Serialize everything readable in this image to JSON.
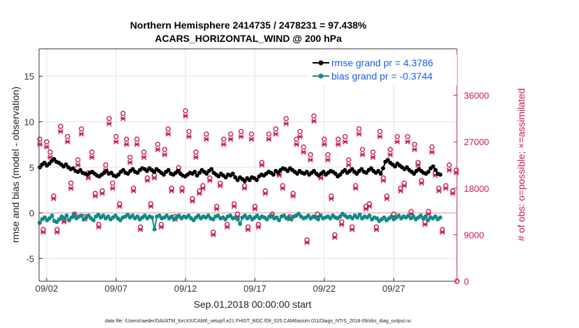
{
  "chart_data": {
    "type": "line",
    "title_line1": "Northern Hemisphere 2414735 / 2478231 = 97.438%",
    "title_line2": "ACARS_HORIZONTAL_WIND @ 200 hPa",
    "xlabel": "Sep.01,2018 00:00:00 start",
    "ylabel_left": "rmse and bias (model - observation)",
    "ylabel_right": "# of obs: o=possible; ×=assimilated",
    "footnote": "data file: /Users/raeder/DAI/ATM_forcXX/CAM6_setup/f.e21.FHIST_BGC.f09_025.CAM6assim.011/Diags_NTrS_2018-09/obs_diag_output.nc",
    "x_range_days": [
      0.7,
      30.8
    ],
    "ylim_left": [
      -7.5,
      18
    ],
    "ylim_right": [
      0,
      45000
    ],
    "x_ticks": [
      {
        "day": 1.25,
        "label": "09/02"
      },
      {
        "day": 6.25,
        "label": "09/07"
      },
      {
        "day": 11.25,
        "label": "09/12"
      },
      {
        "day": 16.25,
        "label": "09/17"
      },
      {
        "day": 21.25,
        "label": "09/22"
      },
      {
        "day": 26.25,
        "label": "09/27"
      }
    ],
    "y_ticks_left": [
      {
        "value": -5,
        "label": "-5"
      },
      {
        "value": 0,
        "label": "0"
      },
      {
        "value": 5,
        "label": "5"
      },
      {
        "value": 10,
        "label": "10"
      },
      {
        "value": 15,
        "label": "15"
      }
    ],
    "y_ticks_right": [
      {
        "value": 0,
        "label": "0"
      },
      {
        "value": 9000,
        "label": "9000"
      },
      {
        "value": 18000,
        "label": "18000"
      },
      {
        "value": 27000,
        "label": "27000"
      },
      {
        "value": 36000,
        "label": "36000"
      }
    ],
    "colors": {
      "rmse": "#000000",
      "bias": "#0f8a87",
      "obs": "#c8195a",
      "zero_line": "#d79aa8",
      "grid": "#e4e4e4",
      "legend_text": "#1a5fe0"
    },
    "series": [
      {
        "name": "rmse grand pr = 4.3786",
        "axis": "left",
        "values": [
          5.0,
          5.3,
          5.5,
          5.2,
          5.4,
          5.7,
          5.9,
          5.6,
          5.5,
          5.3,
          5.1,
          5.3,
          5.0,
          4.8,
          4.9,
          4.6,
          4.5,
          4.7,
          4.4,
          4.3,
          4.2,
          4.4,
          4.5,
          4.3,
          4.1,
          4.0,
          4.2,
          4.4,
          4.6,
          4.3,
          4.4,
          4.1,
          4.0,
          4.2,
          4.5,
          4.7,
          4.4,
          4.3,
          4.6,
          4.8,
          4.5,
          4.4,
          4.7,
          4.9,
          4.8,
          4.6,
          4.9,
          4.7,
          4.5,
          4.8,
          4.6,
          4.4,
          4.2,
          4.5,
          4.7,
          4.3,
          4.2,
          4.4,
          4.6,
          4.3,
          4.1,
          4.0,
          4.2,
          4.4,
          4.3,
          4.5,
          4.1,
          4.4,
          4.7,
          4.5,
          4.3,
          4.6,
          4.8,
          4.4,
          4.2,
          4.0,
          4.3,
          4.1,
          3.9,
          4.2,
          4.1,
          4.3,
          3.9,
          3.6,
          3.9,
          3.7,
          3.5,
          3.8,
          3.6,
          3.9,
          3.8,
          3.6,
          4.0,
          4.2,
          4.1,
          4.3,
          4.5,
          4.4,
          4.2,
          4.6,
          4.4,
          4.7,
          4.9,
          4.8,
          4.6,
          4.9,
          4.7,
          4.5,
          4.3,
          4.6,
          4.4,
          4.3,
          4.5,
          4.2,
          4.4,
          4.6,
          4.3,
          4.1,
          4.3,
          4.5,
          4.2,
          4.4,
          4.6,
          4.5,
          4.3,
          4.0,
          4.2,
          4.5,
          4.7,
          4.4,
          4.6,
          4.8,
          4.5,
          4.3,
          4.6,
          4.8,
          4.5,
          4.4,
          4.7,
          4.9,
          4.6,
          4.4,
          4.6,
          4.3,
          4.9,
          5.6,
          5.8,
          5.5,
          5.3,
          5.1,
          5.4,
          5.2,
          5.0,
          4.8,
          5.0,
          4.7,
          4.5,
          4.3,
          4.6,
          4.8,
          4.6,
          4.4,
          4.3,
          4.5,
          4.9,
          5.1,
          4.7,
          4.3,
          4.2
        ]
      },
      {
        "name": "bias grand pr = -0.3744",
        "axis": "left",
        "values": [
          -1.1,
          -0.7,
          -0.5,
          -0.8,
          -0.6,
          -0.3,
          -0.9,
          -1.0,
          -0.7,
          -0.4,
          -0.6,
          -0.3,
          -0.8,
          -0.5,
          -0.2,
          -0.6,
          -0.4,
          -0.3,
          -0.7,
          -0.5,
          -0.3,
          -0.6,
          -0.8,
          -0.4,
          -0.2,
          -0.5,
          -0.3,
          -0.6,
          -0.4,
          -0.7,
          -0.5,
          -0.3,
          -0.6,
          -0.8,
          -0.5,
          -0.4,
          -0.2,
          -0.5,
          -0.3,
          -0.6,
          -0.4,
          -0.7,
          -0.5,
          -0.3,
          -0.6,
          -0.4,
          -0.5,
          -1.8,
          -0.4,
          -0.3,
          -0.6,
          -0.5,
          -0.3,
          -0.6,
          -0.4,
          -0.7,
          -0.5,
          -0.3,
          -0.6,
          -0.4,
          -0.5,
          -0.3,
          -0.6,
          -0.8,
          -0.5,
          -0.3,
          -0.6,
          -0.4,
          -0.5,
          -0.3,
          -0.6,
          -0.7,
          -0.4,
          -0.3,
          -0.6,
          -0.5,
          -0.7,
          -0.4,
          -0.3,
          -0.6,
          -0.5,
          -0.7,
          -1.2,
          -0.5,
          -0.3,
          -0.6,
          -0.4,
          -0.7,
          -0.5,
          -0.3,
          -0.6,
          -0.4,
          -0.5,
          -0.7,
          -0.4,
          -0.3,
          -0.6,
          -0.5,
          -0.8,
          -0.4,
          -0.3,
          -0.6,
          -0.5,
          -0.7,
          -0.4,
          -0.3,
          -0.1,
          -0.4,
          -0.6,
          -0.5,
          -0.3,
          -0.6,
          -0.4,
          -0.5,
          -0.7,
          -0.3,
          -0.6,
          -0.5,
          -0.4,
          -0.6,
          -0.3,
          -0.5,
          -0.6,
          -0.4,
          -0.1,
          -0.3,
          -0.5,
          -0.4,
          -0.6,
          -0.3,
          -0.5,
          -0.2,
          -0.6,
          -0.4,
          -0.5,
          -0.3,
          -0.7,
          -0.5,
          -0.6,
          -0.9,
          -0.7,
          -0.5,
          -0.8,
          -0.6,
          -0.4,
          -0.7,
          -0.5,
          -0.3,
          -0.6,
          -0.4,
          -0.5,
          -0.3,
          -0.6,
          -0.4,
          -0.7,
          -0.5,
          -0.3,
          -0.6,
          -0.4,
          -0.8,
          -0.5,
          -0.6,
          -0.4,
          -0.7,
          -0.5
        ]
      }
    ],
    "obs_series": [
      {
        "name": "possible",
        "axis": "right",
        "marker": "o",
        "days": [
          0.75,
          1.0,
          1.25,
          1.5,
          1.75,
          2.0,
          2.25,
          2.5,
          2.75,
          3.0,
          3.25,
          3.5,
          3.75,
          4.0,
          4.25,
          4.5,
          4.75,
          5.0,
          5.25,
          5.5,
          5.75,
          6.0,
          6.25,
          6.5,
          6.75,
          7.0,
          7.25,
          7.5,
          7.75,
          8.0,
          8.25,
          8.5,
          8.75,
          9.0,
          9.25,
          9.5,
          9.75,
          10.0,
          10.25,
          10.5,
          10.75,
          11.0,
          11.25,
          11.5,
          11.75,
          12.0,
          12.25,
          12.5,
          12.75,
          13.0,
          13.25,
          13.5,
          13.75,
          14.0,
          14.25,
          14.5,
          14.75,
          15.0,
          15.25,
          15.5,
          15.75,
          16.0,
          16.25,
          16.5,
          16.75,
          17.0,
          17.25,
          17.5,
          17.75,
          18.0,
          18.25,
          18.5,
          18.75,
          19.0,
          19.25,
          19.5,
          19.75,
          20.0,
          20.25,
          20.5,
          20.75,
          21.0,
          21.25,
          21.5,
          21.75,
          22.0,
          22.25,
          22.5,
          22.75,
          23.0,
          23.25,
          23.5,
          23.75,
          24.0,
          24.25,
          24.5,
          24.75,
          25.0,
          25.25,
          25.5,
          25.75,
          26.0,
          26.25,
          26.5,
          26.75,
          27.0,
          27.25,
          27.5,
          27.75,
          28.0,
          28.25,
          28.5,
          28.75,
          29.0,
          29.25,
          29.5,
          29.75,
          30.0,
          30.25,
          30.5,
          30.75
        ],
        "values": [
          27500,
          10000,
          27000,
          25000,
          16500,
          10000,
          30000,
          12000,
          28000,
          19000,
          13000,
          23500,
          29500,
          12500,
          21000,
          25000,
          17000,
          11000,
          17500,
          22500,
          31500,
          19000,
          28000,
          15000,
          32500,
          27500,
          24000,
          18000,
          27500,
          10500,
          25000,
          20000,
          15000,
          20500,
          26500,
          11000,
          25500,
          29500,
          18000,
          12500,
          22000,
          18000,
          33000,
          29000,
          16000,
          25000,
          17500,
          18500,
          28500,
          20000,
          9500,
          14500,
          19000,
          27500,
          11000,
          28500,
          15000,
          13000,
          29000,
          18500,
          10500,
          28500,
          14500,
          11000,
          23000,
          17500,
          28500,
          13000,
          29500,
          21000,
          18500,
          31500,
          12500,
          17000,
          27500,
          29000,
          26000,
          8000,
          24500,
          32000,
          13000,
          20500,
          27500,
          24500,
          16500,
          9000,
          27500,
          11500,
          28000,
          23500,
          10500,
          18500,
          29500,
          25500,
          14500,
          15000,
          25000,
          10500,
          29000,
          20000,
          16500,
          25500,
          13000,
          28000,
          18000,
          19000,
          28000,
          13500,
          26500,
          23000,
          19500,
          11500,
          13500,
          26000,
          21000,
          18000,
          10000,
          18500,
          22500,
          17500,
          21500
        ]
      },
      {
        "name": "assimilated",
        "axis": "right",
        "marker": "x",
        "days": [
          0.75,
          1.0,
          1.25,
          1.5,
          1.75,
          2.0,
          2.25,
          2.5,
          2.75,
          3.0,
          3.25,
          3.5,
          3.75,
          4.0,
          4.25,
          4.5,
          4.75,
          5.0,
          5.25,
          5.5,
          5.75,
          6.0,
          6.25,
          6.5,
          6.75,
          7.0,
          7.25,
          7.5,
          7.75,
          8.0,
          8.25,
          8.5,
          8.75,
          9.0,
          9.25,
          9.5,
          9.75,
          10.0,
          10.25,
          10.5,
          10.75,
          11.0,
          11.25,
          11.5,
          11.75,
          12.0,
          12.25,
          12.5,
          12.75,
          13.0,
          13.25,
          13.5,
          13.75,
          14.0,
          14.25,
          14.5,
          14.75,
          15.0,
          15.25,
          15.5,
          15.75,
          16.0,
          16.25,
          16.5,
          16.75,
          17.0,
          17.25,
          17.5,
          17.75,
          18.0,
          18.25,
          18.5,
          18.75,
          19.0,
          19.25,
          19.5,
          19.75,
          20.0,
          20.25,
          20.5,
          20.75,
          21.0,
          21.25,
          21.5,
          21.75,
          22.0,
          22.25,
          22.5,
          22.75,
          23.0,
          23.25,
          23.5,
          23.75,
          24.0,
          24.25,
          24.5,
          24.75,
          25.0,
          25.25,
          25.5,
          25.75,
          26.0,
          26.25,
          26.5,
          26.75,
          27.0,
          27.25,
          27.5,
          27.75,
          28.0,
          28.25,
          28.5,
          28.75,
          29.0,
          29.25,
          29.5,
          29.75,
          30.0,
          30.25,
          30.5,
          30.75
        ],
        "values": [
          26500,
          9500,
          26000,
          24000,
          16000,
          9500,
          29000,
          11500,
          27000,
          18000,
          12500,
          22500,
          28500,
          12000,
          20000,
          24000,
          16500,
          10500,
          17000,
          21500,
          30500,
          18000,
          27000,
          14500,
          31500,
          26500,
          23000,
          17500,
          26500,
          10000,
          24000,
          19500,
          14500,
          20000,
          25500,
          10500,
          24500,
          28500,
          17500,
          12000,
          21500,
          17500,
          32000,
          28000,
          15500,
          24000,
          17000,
          18000,
          27500,
          19500,
          9000,
          14000,
          18500,
          26500,
          10500,
          27500,
          14500,
          12500,
          28000,
          18000,
          10000,
          27500,
          14000,
          10500,
          22500,
          17000,
          27500,
          12500,
          28500,
          20500,
          18000,
          30500,
          12000,
          16500,
          26500,
          28000,
          25000,
          7500,
          23500,
          31000,
          12500,
          20000,
          26500,
          23500,
          16000,
          8500,
          26500,
          11000,
          27000,
          22500,
          10000,
          18000,
          28500,
          24500,
          14000,
          14500,
          24000,
          10000,
          28000,
          19500,
          16000,
          24500,
          12500,
          27000,
          17500,
          18500,
          27000,
          13000,
          25500,
          22500,
          19000,
          11000,
          13000,
          25000,
          20500,
          17500,
          9500,
          18000,
          21500,
          17000,
          21000
        ]
      }
    ]
  }
}
